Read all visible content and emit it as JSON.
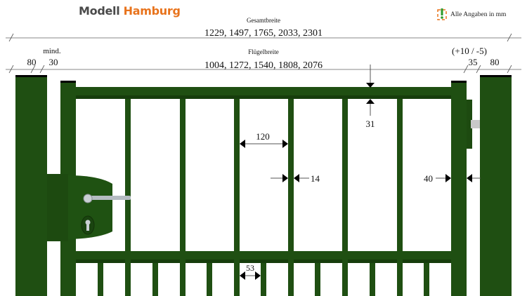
{
  "brand": {
    "part1": "Modell",
    "part2": "Hamburg"
  },
  "note": {
    "icon": "info-exclamation-icon",
    "text": "Alle Angaben in mm"
  },
  "dimensions": {
    "total_label": "Gesamtbreite",
    "total_values": "1229, 1497, 1765, 2033, 2301",
    "leaf_label": "Flügelbreite",
    "leaf_values": "1004, 1272, 1540, 1808, 2076",
    "left_post": "80",
    "left_gap_label": "mind.",
    "left_gap": "30",
    "right_tolerance": "(+10 / -5)",
    "right_gap": "35",
    "right_post": "80",
    "top_rail": "31",
    "bar_spacing": "120",
    "bar_width": "14",
    "stile_width": "40",
    "lower_bar_spacing": "53"
  },
  "colors": {
    "gate_green": "#1f4f12",
    "dark_green": "#163d0c",
    "accent_orange": "#e8731c"
  }
}
